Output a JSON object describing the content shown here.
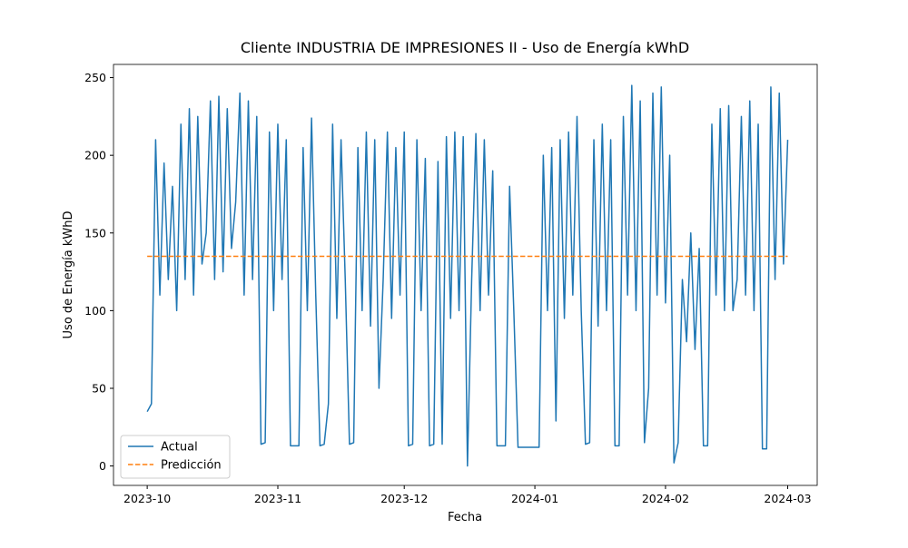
{
  "chart_data": {
    "type": "line",
    "title": "Cliente INDUSTRIA DE IMPRESIONES II - Uso de Energía kWhD",
    "xlabel": "Fecha",
    "ylabel": "Uso de Energía kWhD",
    "xlim": [
      "2023-09-23",
      "2024-03-08"
    ],
    "xticks": [
      {
        "value": "2023-10-01",
        "label": "2023-10"
      },
      {
        "value": "2023-11-01",
        "label": "2023-11"
      },
      {
        "value": "2023-12-01",
        "label": "2023-12"
      },
      {
        "value": "2024-01-01",
        "label": "2024-01"
      },
      {
        "value": "2024-02-01",
        "label": "2024-02"
      },
      {
        "value": "2024-03-01",
        "label": "2024-03"
      }
    ],
    "ylim": [
      -12.5,
      258.5
    ],
    "yticks": [
      0,
      50,
      100,
      150,
      200,
      250
    ],
    "legend": "lower left",
    "series": [
      {
        "name": "Actual",
        "color": "#1f77b4",
        "style": "solid",
        "x": [
          "2023-10-01",
          "2023-10-02",
          "2023-10-03",
          "2023-10-04",
          "2023-10-05",
          "2023-10-06",
          "2023-10-07",
          "2023-10-08",
          "2023-10-09",
          "2023-10-10",
          "2023-10-11",
          "2023-10-12",
          "2023-10-13",
          "2023-10-14",
          "2023-10-15",
          "2023-10-16",
          "2023-10-17",
          "2023-10-18",
          "2023-10-19",
          "2023-10-20",
          "2023-10-21",
          "2023-10-22",
          "2023-10-23",
          "2023-10-24",
          "2023-10-25",
          "2023-10-26",
          "2023-10-27",
          "2023-10-28",
          "2023-10-29",
          "2023-10-30",
          "2023-10-31",
          "2023-11-01",
          "2023-11-02",
          "2023-11-03",
          "2023-11-04",
          "2023-11-05",
          "2023-11-06",
          "2023-11-07",
          "2023-11-08",
          "2023-11-09",
          "2023-11-10",
          "2023-11-11",
          "2023-11-12",
          "2023-11-13",
          "2023-11-14",
          "2023-11-15",
          "2023-11-16",
          "2023-11-17",
          "2023-11-18",
          "2023-11-19",
          "2023-11-20",
          "2023-11-21",
          "2023-11-22",
          "2023-11-23",
          "2023-11-24",
          "2023-11-25",
          "2023-11-26",
          "2023-11-27",
          "2023-11-28",
          "2023-11-29",
          "2023-11-30",
          "2023-12-01",
          "2023-12-02",
          "2023-12-03",
          "2023-12-04",
          "2023-12-05",
          "2023-12-06",
          "2023-12-07",
          "2023-12-08",
          "2023-12-09",
          "2023-12-10",
          "2023-12-11",
          "2023-12-12",
          "2023-12-13",
          "2023-12-14",
          "2023-12-15",
          "2023-12-16",
          "2023-12-17",
          "2023-12-18",
          "2023-12-19",
          "2023-12-20",
          "2023-12-21",
          "2023-12-22",
          "2023-12-23",
          "2023-12-24",
          "2023-12-25",
          "2023-12-26",
          "2023-12-27",
          "2023-12-28",
          "2023-12-29",
          "2023-12-30",
          "2023-12-31",
          "2024-01-01",
          "2024-01-02",
          "2024-01-03",
          "2024-01-04",
          "2024-01-05",
          "2024-01-06",
          "2024-01-07",
          "2024-01-08",
          "2024-01-09",
          "2024-01-10",
          "2024-01-11",
          "2024-01-12",
          "2024-01-13",
          "2024-01-14",
          "2024-01-15",
          "2024-01-16",
          "2024-01-17",
          "2024-01-18",
          "2024-01-19",
          "2024-01-20",
          "2024-01-21",
          "2024-01-22",
          "2024-01-23",
          "2024-01-24",
          "2024-01-25",
          "2024-01-26",
          "2024-01-27",
          "2024-01-28",
          "2024-01-29",
          "2024-01-30",
          "2024-01-31",
          "2024-02-01",
          "2024-02-02",
          "2024-02-03",
          "2024-02-04",
          "2024-02-05",
          "2024-02-06",
          "2024-02-07",
          "2024-02-08",
          "2024-02-09",
          "2024-02-10",
          "2024-02-11",
          "2024-02-12",
          "2024-02-13",
          "2024-02-14",
          "2024-02-15",
          "2024-02-16",
          "2024-02-17",
          "2024-02-18",
          "2024-02-19",
          "2024-02-20",
          "2024-02-21",
          "2024-02-22",
          "2024-02-23",
          "2024-02-24",
          "2024-02-25",
          "2024-02-26",
          "2024-02-27",
          "2024-02-28",
          "2024-02-29",
          "2024-03-01"
        ],
        "values": [
          35,
          40,
          210,
          110,
          195,
          120,
          180,
          100,
          220,
          120,
          230,
          110,
          225,
          130,
          150,
          235,
          120,
          238,
          125,
          230,
          140,
          170,
          240,
          110,
          235,
          120,
          225,
          14,
          15,
          215,
          100,
          220,
          120,
          210,
          13,
          13,
          13,
          205,
          100,
          224,
          110,
          13,
          14,
          40,
          220,
          95,
          210,
          120,
          14,
          15,
          205,
          100,
          215,
          90,
          210,
          50,
          120,
          215,
          95,
          205,
          110,
          215,
          13,
          14,
          210,
          100,
          198,
          13,
          14,
          196,
          14,
          212,
          95,
          215,
          100,
          212,
          0,
          120,
          214,
          100,
          210,
          110,
          190,
          13,
          13,
          13,
          180,
          100,
          12,
          12,
          12,
          12,
          12,
          12,
          200,
          100,
          205,
          29,
          210,
          95,
          215,
          110,
          225,
          100,
          14,
          15,
          210,
          90,
          220,
          100,
          210,
          13,
          13,
          225,
          110,
          245,
          100,
          235,
          15,
          50,
          240,
          110,
          244,
          105,
          200,
          2,
          15,
          120,
          80,
          150,
          75,
          140,
          13,
          13,
          220,
          110,
          230,
          100,
          232,
          100,
          120,
          225,
          110,
          235,
          100,
          220,
          11,
          11,
          244,
          120,
          240,
          130,
          210
        ]
      },
      {
        "name": "Predicción",
        "color": "#ff7f0e",
        "style": "dashed",
        "x": [
          "2023-10-01",
          "2024-03-01"
        ],
        "values": [
          135,
          135
        ]
      }
    ]
  }
}
